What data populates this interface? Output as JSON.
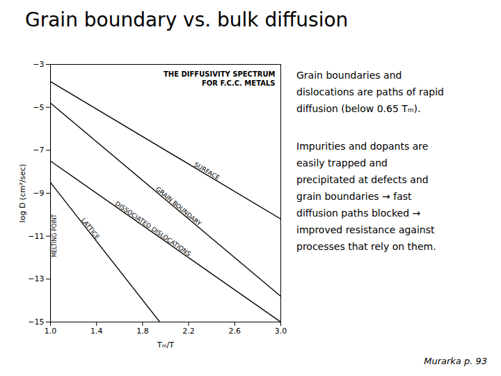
{
  "chart_data": {
    "type": "line",
    "title": "Grain boundary vs. bulk diffusion",
    "xlabel": "Tₘ/T",
    "ylabel": "log D (cm²/sec)",
    "xlim": [
      1.0,
      3.0
    ],
    "ylim": [
      -15,
      -3
    ],
    "xticks": [
      {
        "value": 1.0,
        "label": "1.0"
      },
      1.4,
      1.8,
      2.2,
      2.6,
      {
        "value": 3.0,
        "label": "3.0"
      }
    ],
    "yticks": [
      -15,
      -13,
      -11,
      -9,
      -7,
      -5,
      -3
    ],
    "color": "#000000",
    "series": [
      {
        "name": "SURFACE",
        "x": [
          1.0,
          3.0
        ],
        "values": [
          -3.8,
          -10.2
        ]
      },
      {
        "name": "GRAIN BOUNDARY",
        "x": [
          1.0,
          3.0
        ],
        "values": [
          -4.8,
          -13.8
        ]
      },
      {
        "name": "DISSOCIATED DISLOCATIONS",
        "x": [
          1.0,
          3.0
        ],
        "values": [
          -7.5,
          -15.0
        ]
      },
      {
        "name": "LATTICE",
        "x": [
          1.0,
          1.95
        ],
        "values": [
          -8.5,
          -15.0
        ]
      }
    ],
    "annotations": [
      "THE DIFFUSIVITY SPECTRUM\nFOR F.C.C. METALS"
    ],
    "vline": {
      "x": 1.0,
      "label": "MELTING POINT"
    },
    "notes": [
      "Grain boundaries and\ndislocations are paths of rapid\ndiffusion (below 0.65 Tₘ).",
      "Impurities and dopants are\neasily trapped and\nprecipitated at defects and\ngrain boundaries → fast\ndiffusion paths blocked →\nimproved resistance against\nprocesses that rely on them."
    ],
    "caption": "Murarka p. 93"
  }
}
